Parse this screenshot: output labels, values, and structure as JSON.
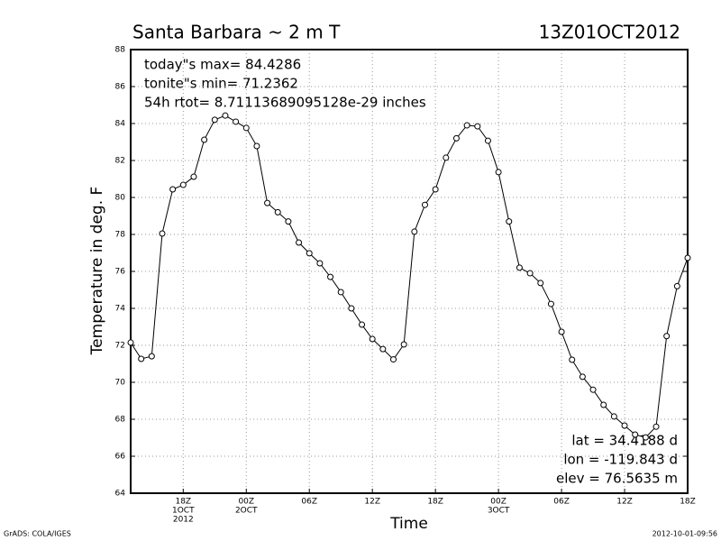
{
  "chart_data": {
    "type": "line",
    "title": "Santa Barbara ~ 2 m T",
    "time_label": "13Z01OCT2012",
    "annotations": [
      "today\"s max= 84.4286",
      "tonite\"s min= 71.2362",
      "54h rtot= 8.71113689095128e-29 inches"
    ],
    "location_info": [
      "lat = 34.4188 d",
      "lon = -119.843 d",
      "elev = 76.5635 m"
    ],
    "y_label": "Temperature in deg. F",
    "x_label": "Time",
    "footer_left": "GrADS: COLA/IGES",
    "footer_right": "2012-10-01-09:56",
    "x": [
      0,
      1,
      2,
      3,
      4,
      5,
      6,
      7,
      8,
      9,
      10,
      11,
      12,
      13,
      14,
      15,
      16,
      17,
      18,
      19,
      20,
      21,
      22,
      23,
      24,
      25,
      26,
      27,
      28,
      29,
      30,
      31,
      32,
      33,
      34,
      35,
      36,
      37,
      38,
      39,
      40,
      41,
      42,
      43,
      44,
      45,
      46,
      47,
      48,
      49,
      50,
      51,
      52,
      53
    ],
    "series": [
      {
        "name": "2 m T",
        "color": "#000000",
        "values": [
          72.15,
          71.27,
          71.41,
          78.05,
          80.44,
          80.68,
          81.12,
          83.12,
          84.2,
          84.43,
          84.1,
          83.76,
          82.78,
          79.7,
          79.2,
          78.7,
          77.56,
          76.98,
          76.44,
          75.7,
          74.88,
          74.0,
          73.12,
          72.34,
          71.8,
          71.24,
          72.05,
          78.15,
          79.6,
          80.44,
          82.15,
          83.2,
          83.9,
          83.85,
          83.07,
          81.37,
          78.7,
          76.2,
          75.9,
          75.37,
          74.24,
          72.73,
          71.22,
          70.3,
          69.6,
          68.78,
          68.15,
          67.66,
          67.17,
          67.02,
          67.6,
          72.5,
          75.2,
          76.73
        ]
      }
    ],
    "xlim": [
      0,
      53
    ],
    "xticks": [
      {
        "value": 5,
        "label": "18Z",
        "date": "1OCT",
        "year": "2012"
      },
      {
        "value": 11,
        "label": "00Z",
        "date": "2OCT"
      },
      {
        "value": 17,
        "label": "06Z"
      },
      {
        "value": 23,
        "label": "12Z"
      },
      {
        "value": 29,
        "label": "18Z"
      },
      {
        "value": 35,
        "label": "00Z",
        "date": "3OCT"
      },
      {
        "value": 41,
        "label": "06Z"
      },
      {
        "value": 47,
        "label": "12Z"
      },
      {
        "value": 53,
        "label": "18Z"
      }
    ],
    "ylim": [
      64,
      88
    ],
    "yticks": [
      64,
      66,
      68,
      70,
      72,
      74,
      76,
      78,
      80,
      82,
      84,
      86,
      88
    ],
    "grid": true
  }
}
